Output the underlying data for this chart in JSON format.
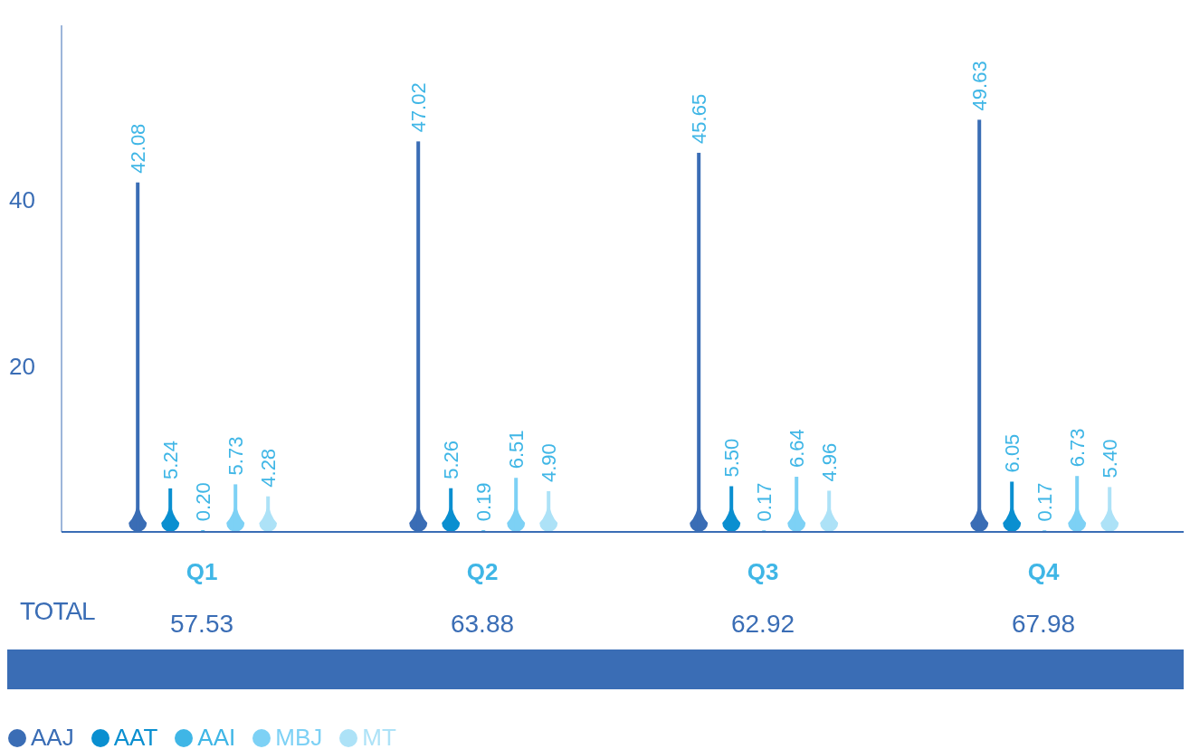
{
  "chart_data": {
    "type": "bar",
    "categories": [
      "Q1",
      "Q2",
      "Q3",
      "Q4"
    ],
    "series": [
      {
        "name": "AAJ",
        "color": "#3a6db5",
        "values": [
          42.08,
          47.02,
          45.65,
          49.63
        ],
        "value_labels": [
          "42.08",
          "47.02",
          "45.65",
          "49.63"
        ]
      },
      {
        "name": "AAT",
        "color": "#0a8fd0",
        "values": [
          5.24,
          5.26,
          5.5,
          6.05
        ],
        "value_labels": [
          "5.24",
          "5.26",
          "5.50",
          "6.05"
        ]
      },
      {
        "name": "AAI",
        "color": "#3fb6e6",
        "values": [
          0.2,
          0.19,
          0.17,
          0.17
        ],
        "value_labels": [
          "0.20",
          "0.19",
          "0.17",
          "0.17"
        ]
      },
      {
        "name": "MBJ",
        "color": "#7dd1f5",
        "values": [
          5.73,
          6.51,
          6.64,
          6.73
        ],
        "value_labels": [
          "5.73",
          "6.51",
          "6.64",
          "6.73"
        ]
      },
      {
        "name": "MT",
        "color": "#ade2f7",
        "values": [
          4.28,
          4.9,
          4.96,
          5.4
        ],
        "value_labels": [
          "4.28",
          "4.90",
          "4.96",
          "5.40"
        ]
      }
    ],
    "ylim": [
      0,
      61
    ],
    "yticks": [
      20,
      40
    ],
    "totals": [
      "57.53",
      "63.88",
      "62.92",
      "67.98"
    ],
    "annotations": [
      "TOTAL"
    ],
    "grid": false,
    "legend": "bottom left"
  }
}
